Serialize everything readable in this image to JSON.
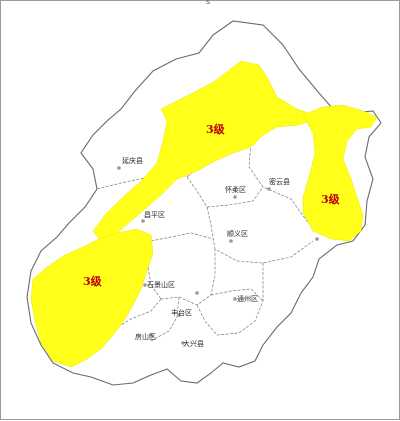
{
  "top_mark": "s",
  "colors": {
    "zone": "#ffff1a",
    "label": "#c00000",
    "border": "#6a6a6a",
    "background": "#ffffff"
  },
  "warning_zones": [
    {
      "id": "northwest-to-center",
      "label": "3级"
    },
    {
      "id": "east",
      "label": "3级"
    },
    {
      "id": "southwest",
      "label": "3级"
    }
  ],
  "districts": [
    {
      "id": "yanqing",
      "name": "延庆县"
    },
    {
      "id": "huairou",
      "name": "怀柔区"
    },
    {
      "id": "miyun",
      "name": "密云县"
    },
    {
      "id": "changping",
      "name": "昌平区"
    },
    {
      "id": "shunyi",
      "name": "顺义区"
    },
    {
      "id": "shijingshan",
      "name": "石景山区"
    },
    {
      "id": "fengtai",
      "name": "丰台区"
    },
    {
      "id": "fangshan",
      "name": "房山区"
    },
    {
      "id": "daxing",
      "name": "大兴县"
    },
    {
      "id": "tongzhou",
      "name": "通州区"
    }
  ]
}
